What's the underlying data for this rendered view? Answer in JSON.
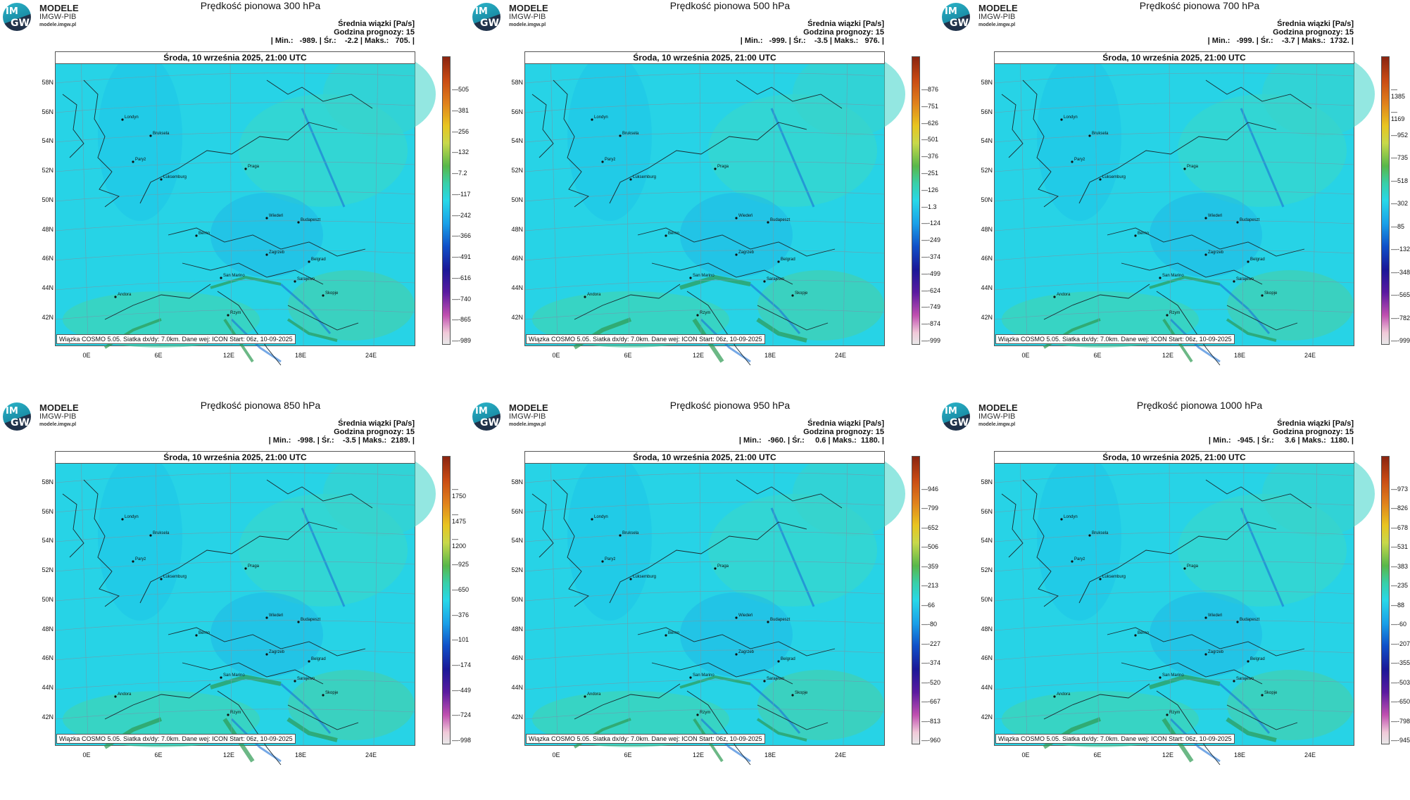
{
  "logo": {
    "im": "IM",
    "gw": "GW",
    "line1": "MODELE",
    "line2": "IMGW-PIB",
    "line3": "modele.imgw.pl"
  },
  "date": "Środa, 10 września 2025, 21:00 UTC",
  "footer": "Wiązka COSMO 5.05. Siatka dx/dy: 7.0km. Dane wej: ICON Start: 06z, 10-09-2025",
  "stats_label": "Średnia wiązki [Pa/s]",
  "forecast_hour": "Godzina prognozy: 15",
  "lat_labels": [
    "58N",
    "56N",
    "54N",
    "52N",
    "50N",
    "48N",
    "46N",
    "44N",
    "42N"
  ],
  "lon_labels": [
    "0E",
    "6E",
    "12E",
    "18E",
    "24E"
  ],
  "cities": [
    "Londyn",
    "Bruksela",
    "Paryż",
    "Luksemburg",
    "Praga",
    "Wiedeń",
    "Budapeszt",
    "Berno",
    "Zagrzeb",
    "Belgrad",
    "San Marino",
    "Sarajewo",
    "Skopje",
    "Andora",
    "Rzym"
  ],
  "colors": {
    "map_base": "#27d3e6",
    "sea_fill": "#3fd7d8"
  },
  "panels": [
    {
      "title": "Prędkość pionowa 300 hPa",
      "minmax": "| Min.:   -989. | Śr.:    -2.2 | Maks.:   705. |",
      "ticks": [
        "505",
        "381",
        "256",
        "132",
        "7.2",
        "-117",
        "-242",
        "-366",
        "-491",
        "-616",
        "-740",
        "-865",
        "-989"
      ]
    },
    {
      "title": "Prędkość pionowa 500 hPa",
      "minmax": "| Min.:   -999. | Śr.:    -3.5 | Maks.:   976. |",
      "ticks": [
        "876",
        "751",
        "626",
        "501",
        "376",
        "251",
        "126",
        "1.3",
        "-124",
        "-249",
        "-374",
        "-499",
        "-624",
        "-749",
        "-874",
        "-999"
      ]
    },
    {
      "title": "Prędkość pionowa 700 hPa",
      "minmax": "| Min.:   -999. | Śr.:    -3.7 | Maks.:  1732. |",
      "ticks": [
        "1385",
        "1169",
        "952",
        "735",
        "518",
        "302",
        "85",
        "-132",
        "-348",
        "-565",
        "-782",
        "-999"
      ]
    },
    {
      "title": "Prędkość pionowa 850 hPa",
      "minmax": "| Min.:   -998. | Śr.:    -3.5 | Maks.:  2189. |",
      "ticks": [
        "1750",
        "1475",
        "1200",
        "925",
        "650",
        "376",
        "101",
        "-174",
        "-449",
        "-724",
        "-998"
      ]
    },
    {
      "title": "Prędkość pionowa 950 hPa",
      "minmax": "| Min.:   -960. | Śr.:     0.6 | Maks.:  1180. |",
      "ticks": [
        "946",
        "799",
        "652",
        "506",
        "359",
        "213",
        "66",
        "-80",
        "-227",
        "-374",
        "-520",
        "-667",
        "-813",
        "-960"
      ]
    },
    {
      "title": "Prędkość pionowa 1000 hPa",
      "minmax": "| Min.:   -945. | Śr.:     3.6 | Maks.:  1180. |",
      "ticks": [
        "973",
        "826",
        "678",
        "531",
        "383",
        "235",
        "88",
        "-60",
        "-207",
        "-355",
        "-503",
        "-650",
        "-798",
        "-945"
      ]
    }
  ]
}
